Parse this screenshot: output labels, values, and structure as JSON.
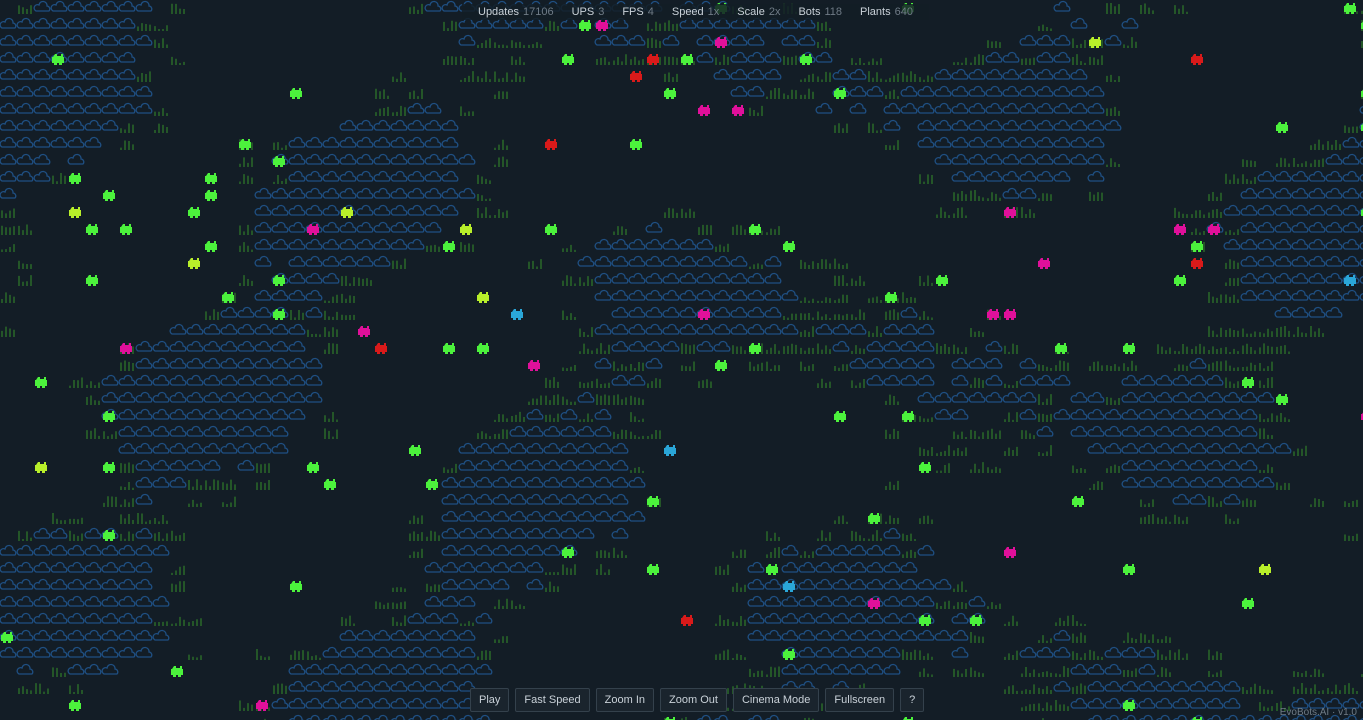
{
  "stats": [
    {
      "label": "Updates",
      "value": 17106
    },
    {
      "label": "UPS",
      "value": 3
    },
    {
      "label": "FPS",
      "value": 4
    },
    {
      "label": "Speed",
      "value": "1x"
    },
    {
      "label": "Scale",
      "value": "2x"
    },
    {
      "label": "Bots",
      "value": 118
    },
    {
      "label": "Plants",
      "value": 640
    }
  ],
  "buttons": [
    "Play",
    "Fast Speed",
    "Zoom In",
    "Zoom Out",
    "Cinema Mode",
    "Fullscreen",
    "?"
  ],
  "footer": "EvoBots.AI · v1.0"
}
